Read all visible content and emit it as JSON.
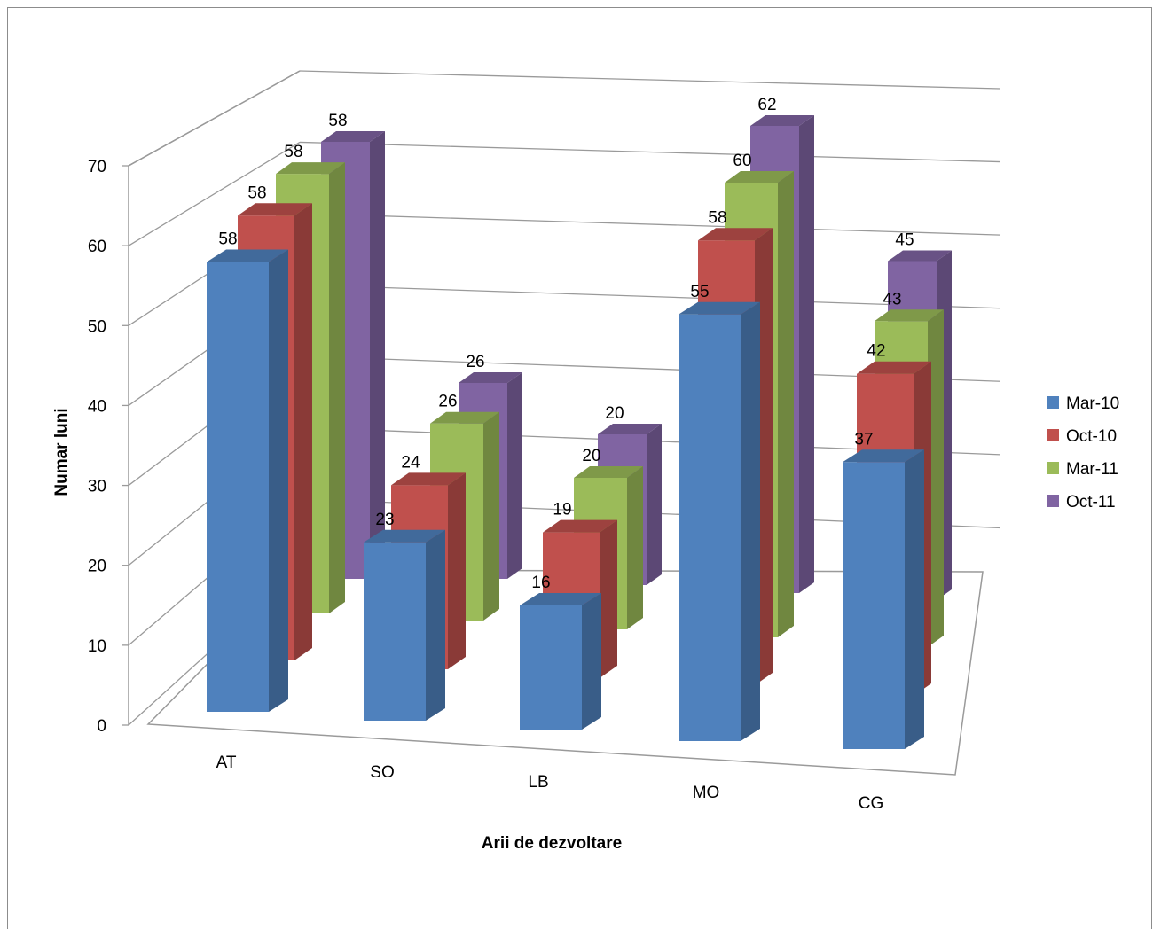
{
  "chart_data": {
    "type": "bar",
    "title": "",
    "xlabel": "Arii de dezvoltare",
    "ylabel": "Numar luni",
    "ylim": [
      0,
      70
    ],
    "yticks": [
      "0",
      "10",
      "20",
      "30",
      "40",
      "50",
      "60",
      "70"
    ],
    "categories": [
      "AT",
      "SO",
      "LB",
      "MO",
      "CG"
    ],
    "series": [
      {
        "name": "Mar-10",
        "values": [
          58,
          23,
          16,
          55,
          37
        ],
        "color": "#4F81BD"
      },
      {
        "name": "Oct-10",
        "values": [
          58,
          24,
          19,
          58,
          42
        ],
        "color": "#C0504D"
      },
      {
        "name": "Mar-11",
        "values": [
          58,
          26,
          20,
          60,
          43
        ],
        "color": "#9BBB59"
      },
      {
        "name": "Oct-11",
        "values": [
          58,
          26,
          20,
          62,
          45
        ],
        "color": "#8064A2"
      }
    ],
    "grid": true,
    "legend": "right",
    "style": "3d-clustered-column"
  }
}
